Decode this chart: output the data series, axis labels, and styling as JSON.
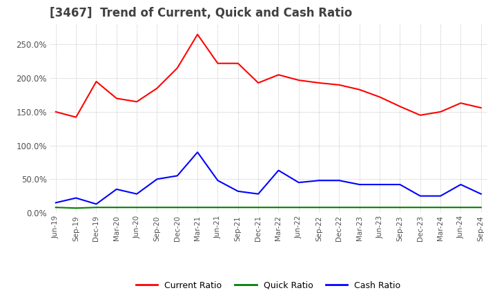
{
  "title": "[3467]  Trend of Current, Quick and Cash Ratio",
  "title_fontsize": 12,
  "title_color": "#404040",
  "background_color": "#ffffff",
  "plot_bg_color": "#ffffff",
  "grid_color": "#aaaaaa",
  "x_labels": [
    "Jun-19",
    "Sep-19",
    "Dec-19",
    "Mar-20",
    "Jun-20",
    "Sep-20",
    "Dec-20",
    "Mar-21",
    "Jun-21",
    "Sep-21",
    "Dec-21",
    "Mar-22",
    "Jun-22",
    "Sep-22",
    "Dec-22",
    "Mar-23",
    "Jun-23",
    "Sep-23",
    "Dec-23",
    "Mar-24",
    "Jun-24",
    "Sep-24"
  ],
  "current_ratio": [
    150,
    142,
    195,
    170,
    165,
    185,
    215,
    265,
    222,
    222,
    193,
    205,
    197,
    193,
    190,
    183,
    172,
    158,
    145,
    150,
    163,
    156
  ],
  "quick_ratio": [
    8,
    7,
    8,
    8,
    8,
    8,
    8,
    8,
    8,
    8,
    8,
    8,
    8,
    8,
    8,
    8,
    8,
    8,
    8,
    8,
    8,
    8
  ],
  "cash_ratio": [
    15,
    22,
    13,
    35,
    28,
    50,
    55,
    90,
    48,
    32,
    28,
    63,
    45,
    48,
    48,
    42,
    42,
    42,
    25,
    25,
    42,
    28
  ],
  "current_color": "#ff0000",
  "quick_color": "#008000",
  "cash_color": "#0000ff",
  "line_width": 1.5,
  "ylim": [
    0,
    280
  ],
  "yticks": [
    0,
    50,
    100,
    150,
    200,
    250
  ],
  "ytick_labels": [
    "0.0%",
    "50.0%",
    "100.0%",
    "150.0%",
    "200.0%",
    "250.0%"
  ],
  "legend_labels": [
    "Current Ratio",
    "Quick Ratio",
    "Cash Ratio"
  ],
  "legend_ncol": 3
}
